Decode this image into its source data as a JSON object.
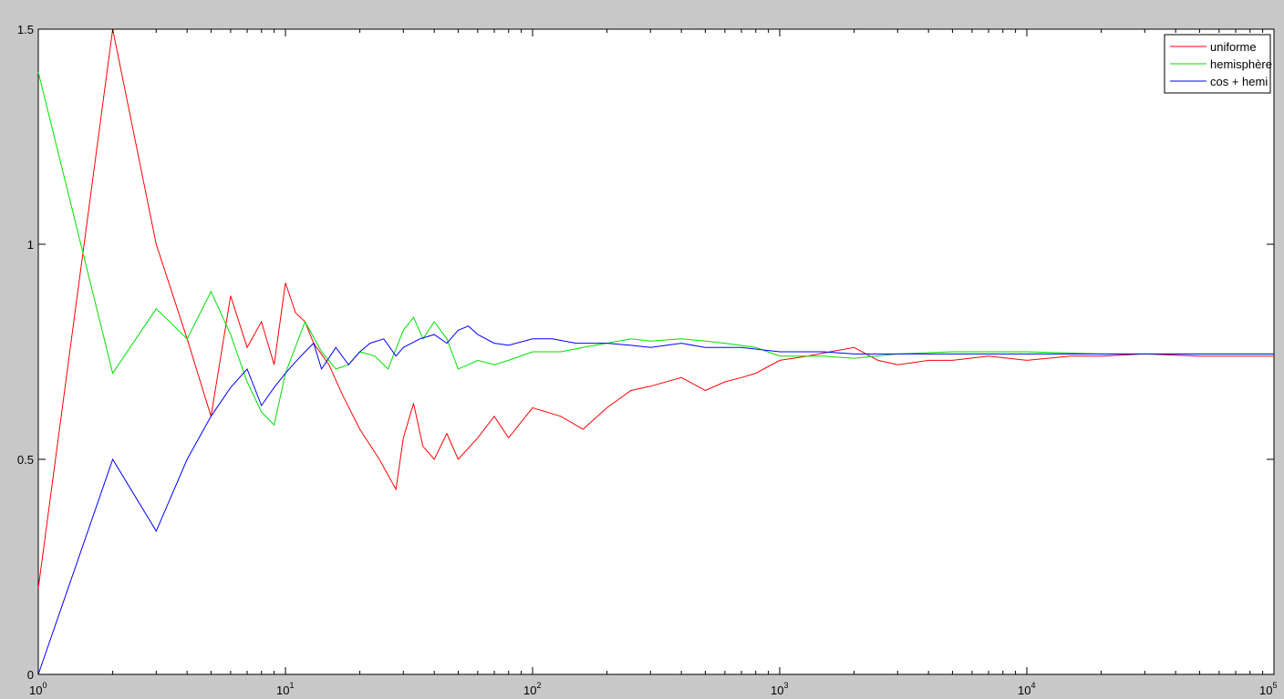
{
  "chart_data": {
    "type": "line",
    "title": "",
    "xlabel": "",
    "ylabel": "",
    "x_scale": "log",
    "xlim": [
      1,
      100000
    ],
    "ylim": [
      0,
      1.5
    ],
    "grid": false,
    "legend_position": "top-right",
    "x_ticks": [
      {
        "base": "10",
        "exp": "0"
      },
      {
        "base": "10",
        "exp": "1"
      },
      {
        "base": "10",
        "exp": "2"
      },
      {
        "base": "10",
        "exp": "3"
      },
      {
        "base": "10",
        "exp": "4"
      },
      {
        "base": "10",
        "exp": "5"
      }
    ],
    "y_ticks": [
      "0",
      "0.5",
      "1",
      "1.5"
    ],
    "series": [
      {
        "name": "uniforme",
        "color": "#ff0000",
        "x": [
          1,
          2,
          3,
          4,
          5,
          6,
          7,
          8,
          9,
          10,
          11,
          12,
          13,
          15,
          17,
          20,
          24,
          28,
          30,
          33,
          36,
          40,
          45,
          50,
          60,
          70,
          80,
          100,
          130,
          160,
          200,
          250,
          300,
          400,
          500,
          600,
          700,
          800,
          1000,
          1300,
          1600,
          2000,
          2500,
          3000,
          4000,
          5000,
          7000,
          10000,
          15000,
          20000,
          30000,
          50000,
          100000
        ],
        "y": [
          0.2,
          1.5,
          1.0,
          0.78,
          0.6,
          0.88,
          0.76,
          0.82,
          0.72,
          0.91,
          0.84,
          0.82,
          0.77,
          0.72,
          0.65,
          0.57,
          0.5,
          0.43,
          0.55,
          0.63,
          0.53,
          0.5,
          0.56,
          0.5,
          0.55,
          0.6,
          0.55,
          0.62,
          0.6,
          0.57,
          0.62,
          0.66,
          0.67,
          0.69,
          0.66,
          0.68,
          0.69,
          0.7,
          0.73,
          0.74,
          0.75,
          0.76,
          0.73,
          0.72,
          0.73,
          0.73,
          0.74,
          0.73,
          0.74,
          0.74,
          0.745,
          0.74,
          0.74
        ]
      },
      {
        "name": "hemisphère",
        "color": "#00e000",
        "x": [
          1,
          2,
          3,
          4,
          5,
          6,
          7,
          8,
          9,
          10,
          12,
          14,
          16,
          18,
          20,
          23,
          26,
          30,
          33,
          36,
          40,
          45,
          50,
          55,
          60,
          70,
          80,
          100,
          130,
          160,
          200,
          250,
          300,
          400,
          500,
          600,
          800,
          1000,
          1500,
          2000,
          3000,
          5000,
          7000,
          10000,
          20000,
          50000,
          100000
        ],
        "y": [
          1.4,
          0.7,
          0.85,
          0.78,
          0.89,
          0.79,
          0.68,
          0.61,
          0.58,
          0.7,
          0.82,
          0.75,
          0.71,
          0.72,
          0.75,
          0.74,
          0.71,
          0.8,
          0.83,
          0.78,
          0.82,
          0.78,
          0.71,
          0.72,
          0.73,
          0.72,
          0.73,
          0.75,
          0.75,
          0.76,
          0.77,
          0.78,
          0.775,
          0.78,
          0.775,
          0.77,
          0.76,
          0.74,
          0.74,
          0.735,
          0.745,
          0.75,
          0.75,
          0.75,
          0.745,
          0.745,
          0.745
        ]
      },
      {
        "name": "cos + hemi",
        "color": "#0000ff",
        "x": [
          1,
          2,
          3,
          4,
          5,
          6,
          7,
          8,
          9,
          10,
          11,
          12,
          13,
          14,
          16,
          18,
          20,
          22,
          25,
          28,
          30,
          35,
          40,
          45,
          50,
          55,
          60,
          70,
          80,
          100,
          120,
          150,
          200,
          250,
          300,
          400,
          500,
          700,
          1000,
          1500,
          2000,
          3000,
          5000,
          10000,
          20000,
          50000,
          100000
        ],
        "y": [
          0,
          0.5,
          0.333,
          0.5,
          0.6,
          0.667,
          0.71,
          0.625,
          0.667,
          0.7,
          0.727,
          0.75,
          0.77,
          0.71,
          0.76,
          0.72,
          0.75,
          0.77,
          0.78,
          0.74,
          0.76,
          0.78,
          0.79,
          0.77,
          0.8,
          0.81,
          0.79,
          0.77,
          0.765,
          0.78,
          0.78,
          0.77,
          0.77,
          0.765,
          0.76,
          0.77,
          0.76,
          0.76,
          0.75,
          0.75,
          0.745,
          0.745,
          0.745,
          0.745,
          0.745,
          0.745,
          0.745
        ]
      }
    ]
  }
}
